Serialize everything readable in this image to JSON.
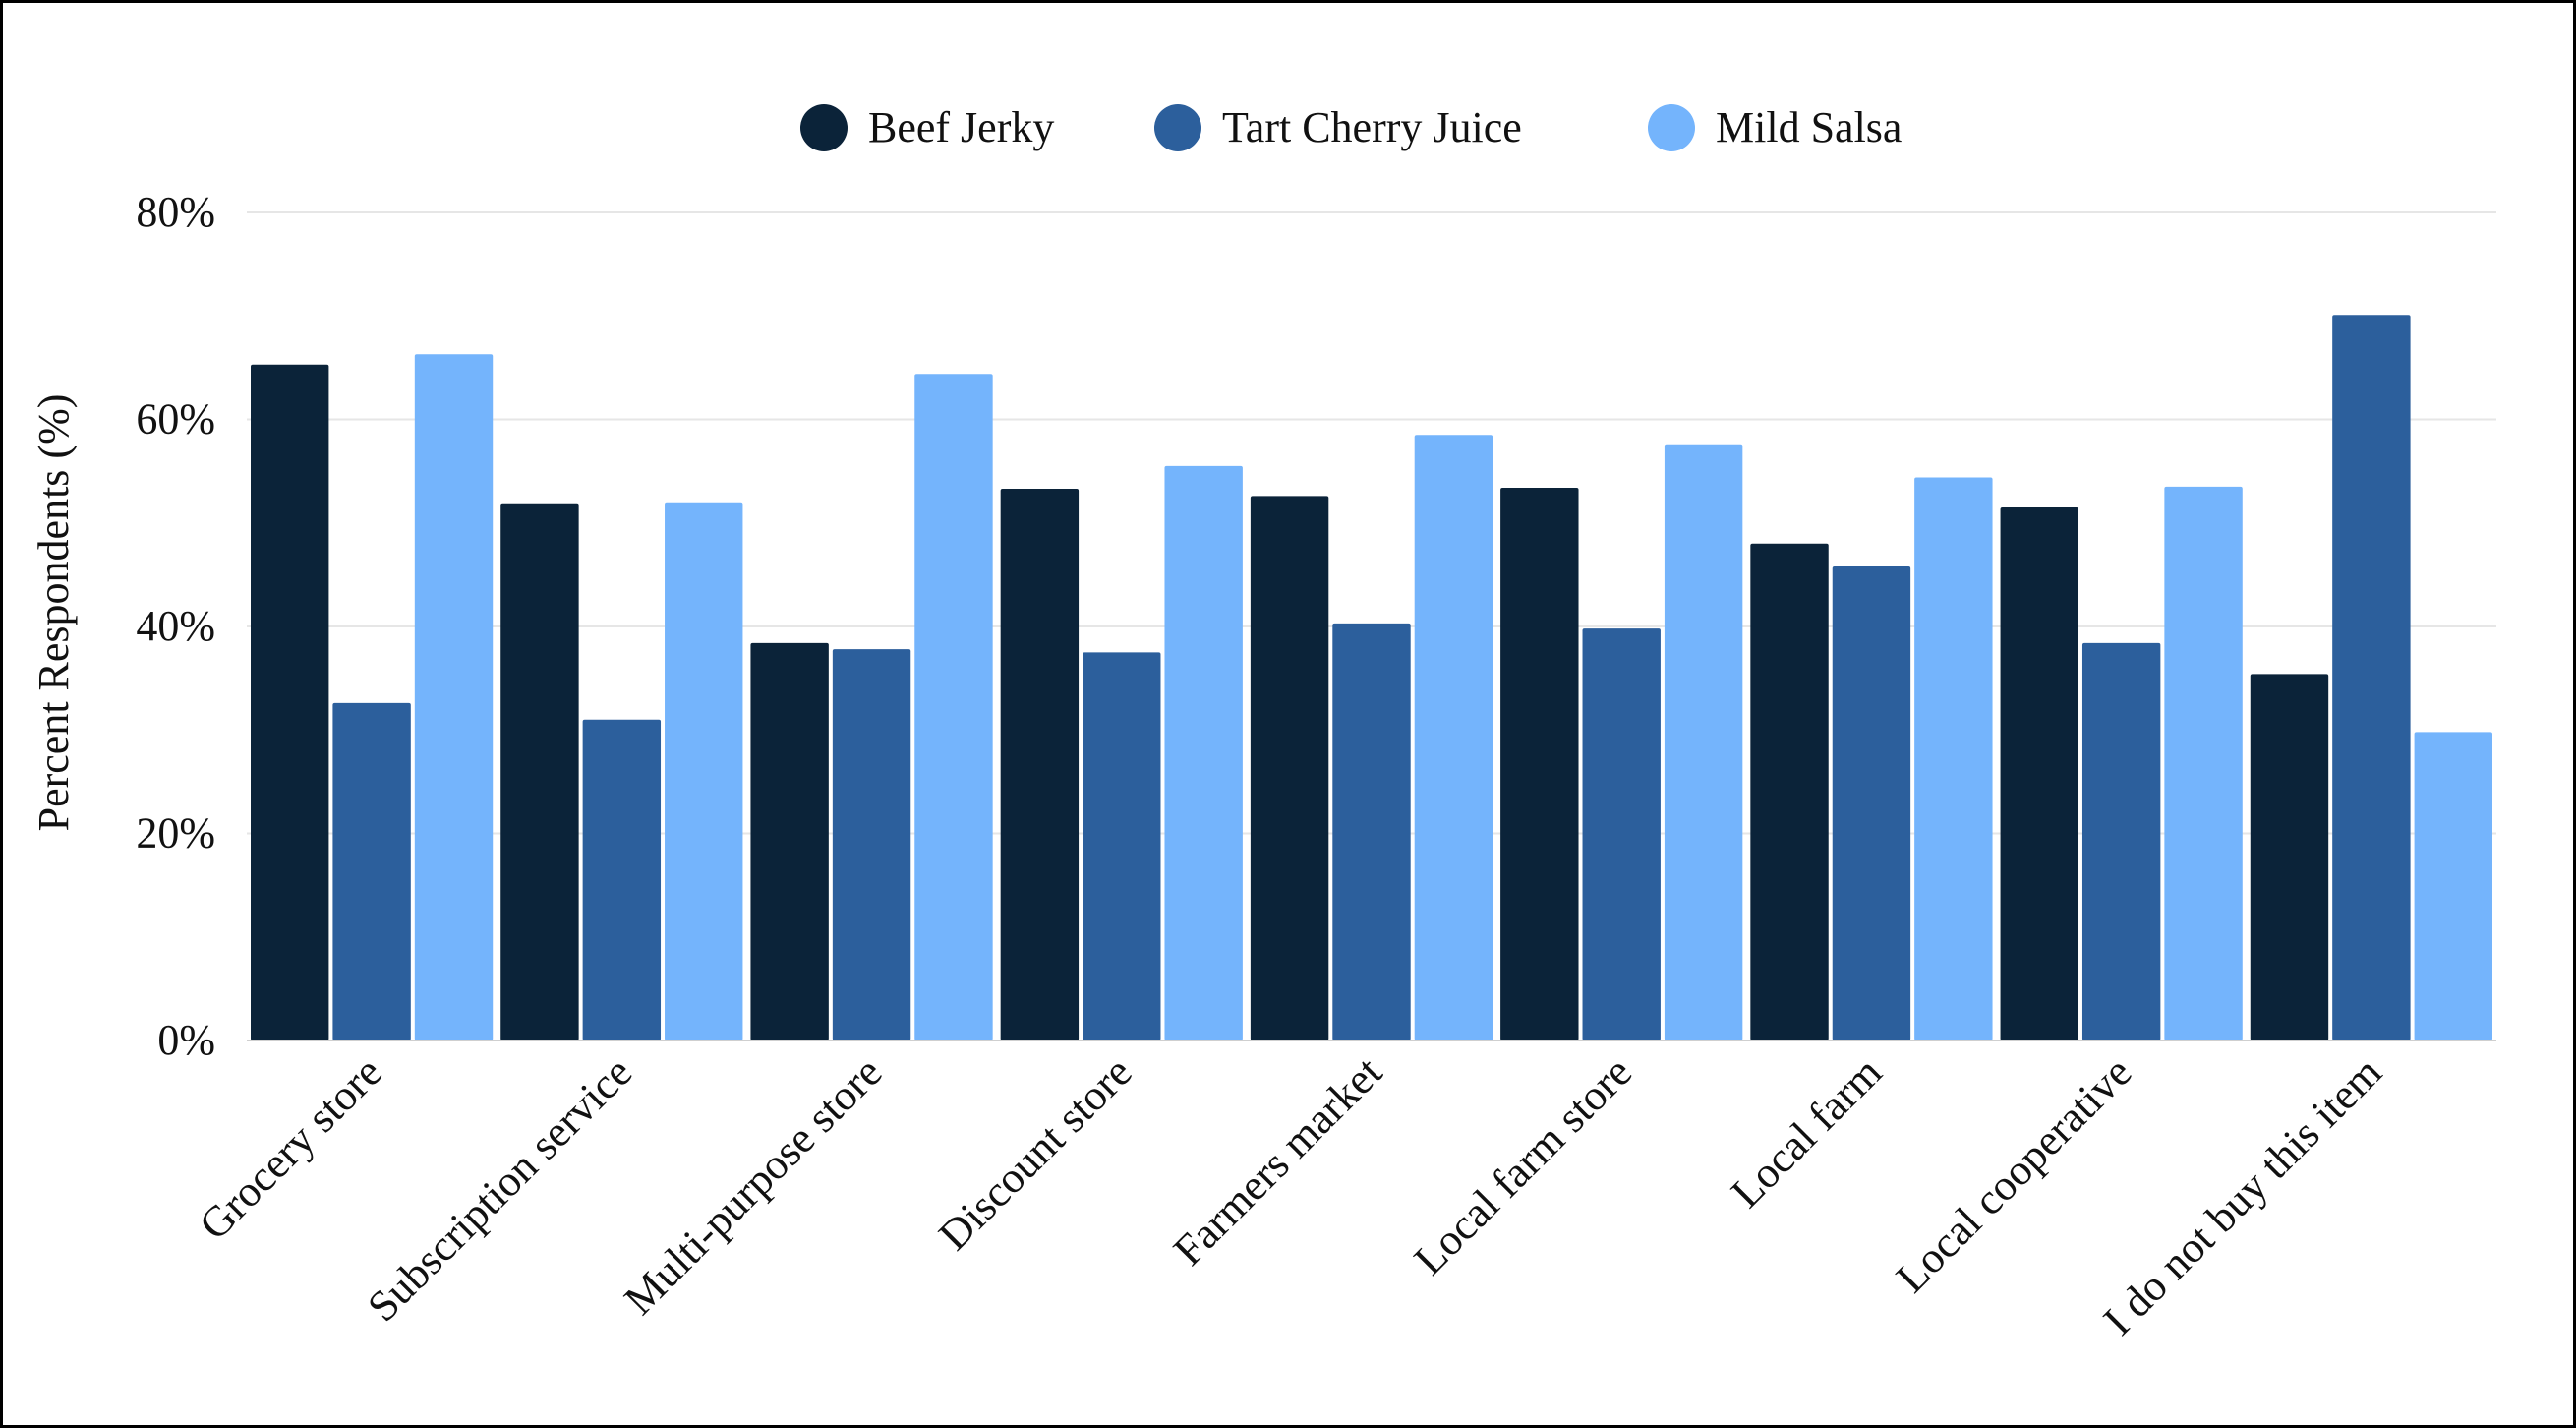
{
  "chart_data": {
    "type": "bar",
    "title": "",
    "xlabel": "",
    "ylabel": "Percent Respondents (%)",
    "ylim": [
      0,
      80
    ],
    "yticks": [
      0,
      20,
      40,
      60,
      80
    ],
    "ytick_labels": [
      "0%",
      "20%",
      "40%",
      "60%",
      "80%"
    ],
    "grid": true,
    "legend_position": "top-center",
    "categories": [
      "Grocery store",
      "Subscription service",
      "Multi-purpose store",
      "Discount store",
      "Farmers market",
      "Local farm store",
      "Local farm",
      "Local cooperative",
      "I do not buy this item"
    ],
    "series": [
      {
        "name": "Beef Jerky",
        "color": "#0b2339",
        "values": [
          65.3,
          51.9,
          38.4,
          53.3,
          52.6,
          53.4,
          48.0,
          51.5,
          35.4
        ]
      },
      {
        "name": "Tart Cherry Juice",
        "color": "#2c5f9c",
        "values": [
          32.6,
          31.0,
          37.8,
          37.5,
          40.3,
          39.8,
          45.8,
          38.4,
          70.1
        ]
      },
      {
        "name": "Mild Salsa",
        "color": "#74b4fc",
        "values": [
          66.3,
          52.0,
          64.4,
          55.5,
          58.5,
          57.6,
          54.4,
          53.5,
          29.8
        ]
      }
    ]
  }
}
